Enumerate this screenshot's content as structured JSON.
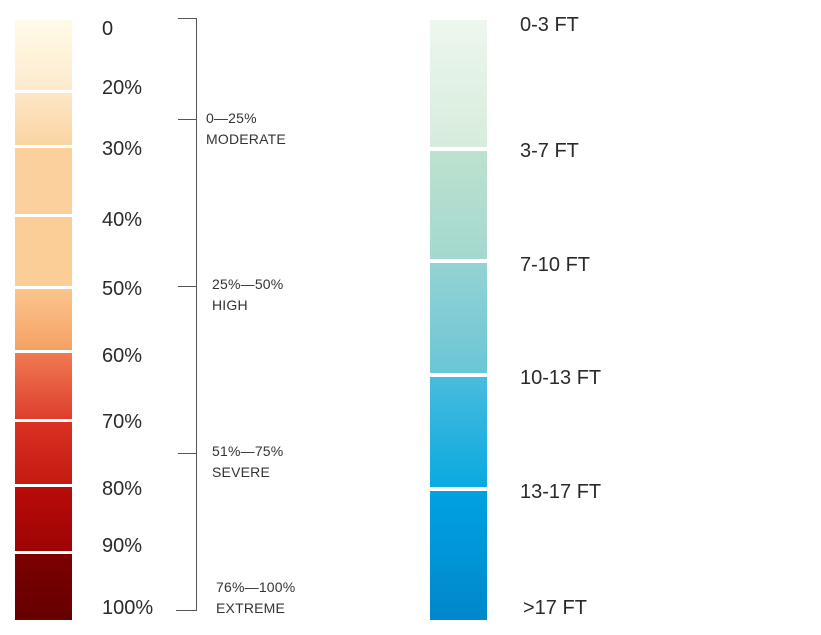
{
  "percent_legend": {
    "labels": [
      "0",
      "20%",
      "30%",
      "40%",
      "50%",
      "60%",
      "70%",
      "80%",
      "90%",
      "100%"
    ],
    "colors": [
      "#fffae6",
      "#fde4c2",
      "#fbd09a",
      "#fbc690",
      "#f6a36a",
      "#e4553a",
      "#d0261b",
      "#a80808",
      "#6e0000"
    ]
  },
  "ranges": [
    {
      "range": "0—25%",
      "name": "MODERATE"
    },
    {
      "range": "25%—50%",
      "name": "HIGH"
    },
    {
      "range": "51%—75%",
      "name": "SEVERE"
    },
    {
      "range": "76%—100%",
      "name": "EXTREME"
    }
  ],
  "depth_legend": {
    "labels": [
      "0-3 FT",
      "3-7 FT",
      "7-10 FT",
      "10-13 FT",
      "13-17 FT",
      ">17 FT"
    ],
    "colors": [
      "#eaf5ea",
      "#bfe2d0",
      "#8dcfd2",
      "#4dbfdc",
      "#00a4e0",
      "#0088cc"
    ]
  }
}
